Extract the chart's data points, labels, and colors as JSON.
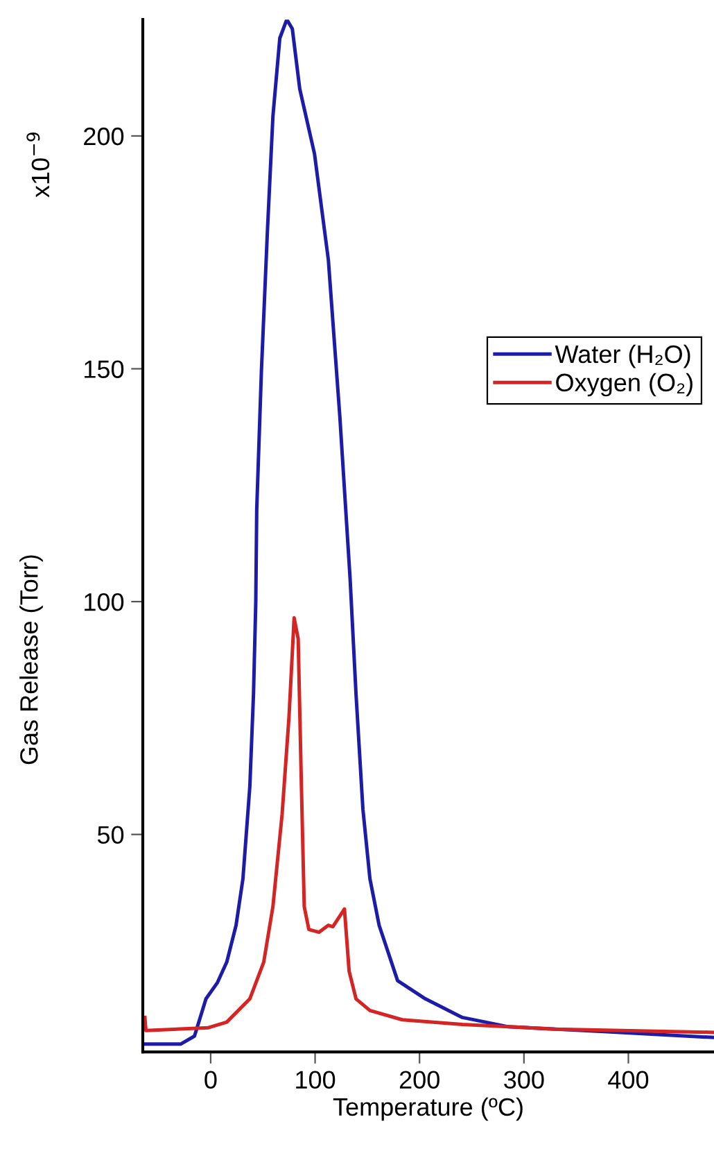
{
  "chart_data": {
    "type": "line",
    "xlabel": "Temperature (ºC)",
    "ylabel": "Gas Release (Torr)",
    "annotations": [
      "x10$^{−9}$"
    ],
    "xlim": [
      -65,
      482
    ],
    "ylim": [
      3.3,
      225
    ],
    "xticks": [
      0,
      100,
      200,
      300,
      400
    ],
    "yticks": [
      50,
      100,
      150,
      200
    ],
    "grid": false,
    "legend": "right",
    "line_style": "solid",
    "marker": "none",
    "series": [
      {
        "name": "Water (H₂O)",
        "color": "#1c1ca8",
        "x": [
          -63,
          -28.5,
          -15.5,
          -4.5,
          6.5,
          15.4,
          24.3,
          30.9,
          37.5,
          41,
          43.2,
          44.1,
          48.6,
          54.3,
          59.6,
          66.2,
          72.9,
          78.2,
          85.3,
          99.4,
          112.7,
          123.7,
          133.5,
          139.2,
          145.8,
          152.5,
          161.3,
          179,
          205.6,
          241,
          285.2,
          373.6,
          481.9
        ],
        "values": [
          5,
          5,
          6.7,
          14.7,
          18.2,
          22.6,
          30.5,
          40.5,
          60.3,
          80.1,
          100,
          119.8,
          149.6,
          179.4,
          204.2,
          221,
          225,
          223,
          210.1,
          196.2,
          173.4,
          139.7,
          105,
          80.1,
          55.4,
          40.5,
          30.5,
          18.6,
          14.7,
          10.7,
          8.7,
          7.7,
          6.4
        ]
      },
      {
        "name": "Oxygen (O₂)",
        "color": "#d42424",
        "x": [
          -63,
          -62,
          -2.2,
          15.4,
          37.5,
          50.8,
          59.6,
          68.4,
          75,
          79.9,
          83.8,
          86.9,
          89.6,
          94,
          103.8,
          112.7,
          117,
          128.1,
          132.6,
          139.2,
          152.5,
          183.5,
          241,
          329.4,
          481.9
        ],
        "values": [
          10.7,
          7.9,
          8.5,
          9.7,
          14.7,
          22.6,
          34.5,
          54.3,
          75.2,
          96.5,
          92,
          60.3,
          34.5,
          29.6,
          29,
          30.5,
          30.2,
          34,
          20.6,
          14.7,
          12.2,
          10.2,
          9.2,
          8.2,
          7.5
        ]
      }
    ]
  }
}
